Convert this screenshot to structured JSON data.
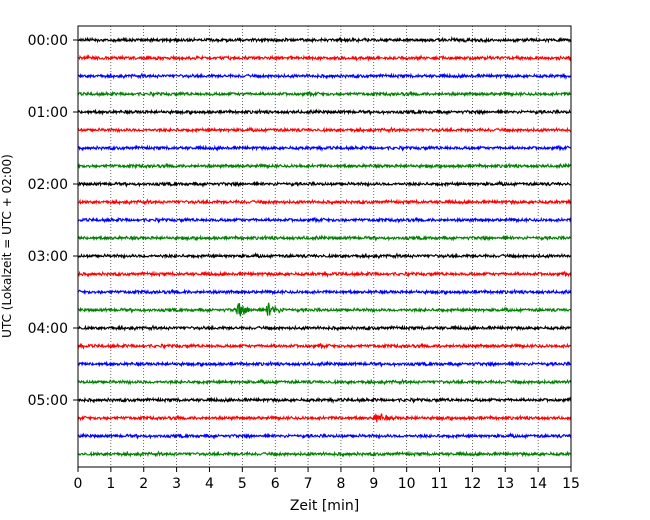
{
  "chart_data": {
    "type": "line",
    "title": "",
    "xlabel": "Zeit  [min]",
    "ylabel": "UTC (Lokalzeit = UTC + 02:00)",
    "xlim": [
      0,
      15
    ],
    "x_ticks": [
      "0",
      "1",
      "2",
      "3",
      "4",
      "5",
      "6",
      "7",
      "8",
      "9",
      "10",
      "11",
      "12",
      "13",
      "14",
      "15"
    ],
    "y_ticks": [
      "00:00",
      "01:00",
      "02:00",
      "03:00",
      "04:00",
      "05:00"
    ],
    "grid": "vertical dotted lines at each minute",
    "trace_interval_minutes": 15,
    "trace_colors": [
      "#000000",
      "#ff0000",
      "#0000ff",
      "#008000"
    ],
    "traces": [
      {
        "start": "00:00",
        "color": "#000000"
      },
      {
        "start": "00:15",
        "color": "#ff0000"
      },
      {
        "start": "00:30",
        "color": "#0000ff"
      },
      {
        "start": "00:45",
        "color": "#008000"
      },
      {
        "start": "01:00",
        "color": "#000000"
      },
      {
        "start": "01:15",
        "color": "#ff0000"
      },
      {
        "start": "01:30",
        "color": "#0000ff"
      },
      {
        "start": "01:45",
        "color": "#008000"
      },
      {
        "start": "02:00",
        "color": "#000000"
      },
      {
        "start": "02:15",
        "color": "#ff0000"
      },
      {
        "start": "02:30",
        "color": "#0000ff"
      },
      {
        "start": "02:45",
        "color": "#008000"
      },
      {
        "start": "03:00",
        "color": "#000000"
      },
      {
        "start": "03:15",
        "color": "#ff0000"
      },
      {
        "start": "03:30",
        "color": "#0000ff"
      },
      {
        "start": "03:45",
        "color": "#008000",
        "events": [
          {
            "x_min": 4.9,
            "amplitude": "large"
          },
          {
            "x_min": 5.8,
            "amplitude": "large"
          }
        ]
      },
      {
        "start": "04:00",
        "color": "#000000"
      },
      {
        "start": "04:15",
        "color": "#ff0000"
      },
      {
        "start": "04:30",
        "color": "#0000ff"
      },
      {
        "start": "04:45",
        "color": "#008000"
      },
      {
        "start": "05:00",
        "color": "#000000"
      },
      {
        "start": "05:15",
        "color": "#ff0000",
        "events": [
          {
            "x_min": 9.1,
            "amplitude": "medium"
          }
        ]
      },
      {
        "start": "05:30",
        "color": "#0000ff"
      },
      {
        "start": "05:45",
        "color": "#008000"
      }
    ]
  }
}
